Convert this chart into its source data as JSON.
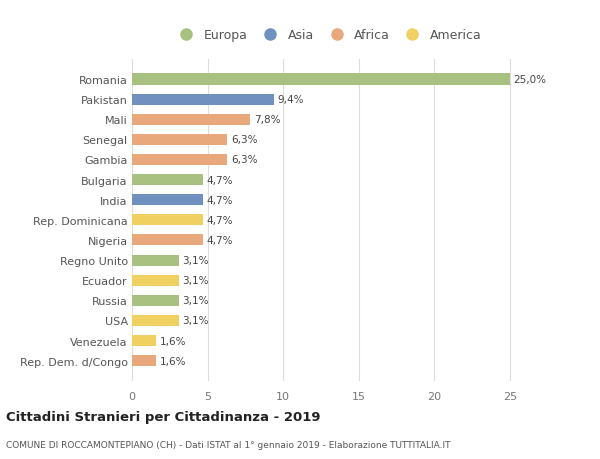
{
  "countries": [
    "Rep. Dem. d/Congo",
    "Venezuela",
    "USA",
    "Russia",
    "Ecuador",
    "Regno Unito",
    "Nigeria",
    "Rep. Dominicana",
    "India",
    "Bulgaria",
    "Gambia",
    "Senegal",
    "Mali",
    "Pakistan",
    "Romania"
  ],
  "values": [
    1.6,
    1.6,
    3.1,
    3.1,
    3.1,
    3.1,
    4.7,
    4.7,
    4.7,
    4.7,
    6.3,
    6.3,
    7.8,
    9.4,
    25.0
  ],
  "labels": [
    "1,6%",
    "1,6%",
    "3,1%",
    "3,1%",
    "3,1%",
    "3,1%",
    "4,7%",
    "4,7%",
    "4,7%",
    "4,7%",
    "6,3%",
    "6,3%",
    "7,8%",
    "9,4%",
    "25,0%"
  ],
  "colors": [
    "#e8a87c",
    "#f0d060",
    "#f0d060",
    "#a8c080",
    "#f0d060",
    "#a8c080",
    "#e8a87c",
    "#f0d060",
    "#7090c0",
    "#a8c080",
    "#e8a87c",
    "#e8a87c",
    "#e8a87c",
    "#7090c0",
    "#a8c080"
  ],
  "legend_labels": [
    "Europa",
    "Asia",
    "Africa",
    "America"
  ],
  "legend_colors": [
    "#a8c080",
    "#7090c0",
    "#e8a87c",
    "#f0d060"
  ],
  "title": "Cittadini Stranieri per Cittadinanza - 2019",
  "subtitle": "COMUNE DI ROCCAMONTEPIANO (CH) - Dati ISTAT al 1° gennaio 2019 - Elaborazione TUTTITALIA.IT",
  "xlim": [
    0,
    27
  ],
  "xticks": [
    0,
    5,
    10,
    15,
    20,
    25
  ],
  "bg_color": "#ffffff",
  "grid_color": "#dddddd",
  "bar_height": 0.55
}
